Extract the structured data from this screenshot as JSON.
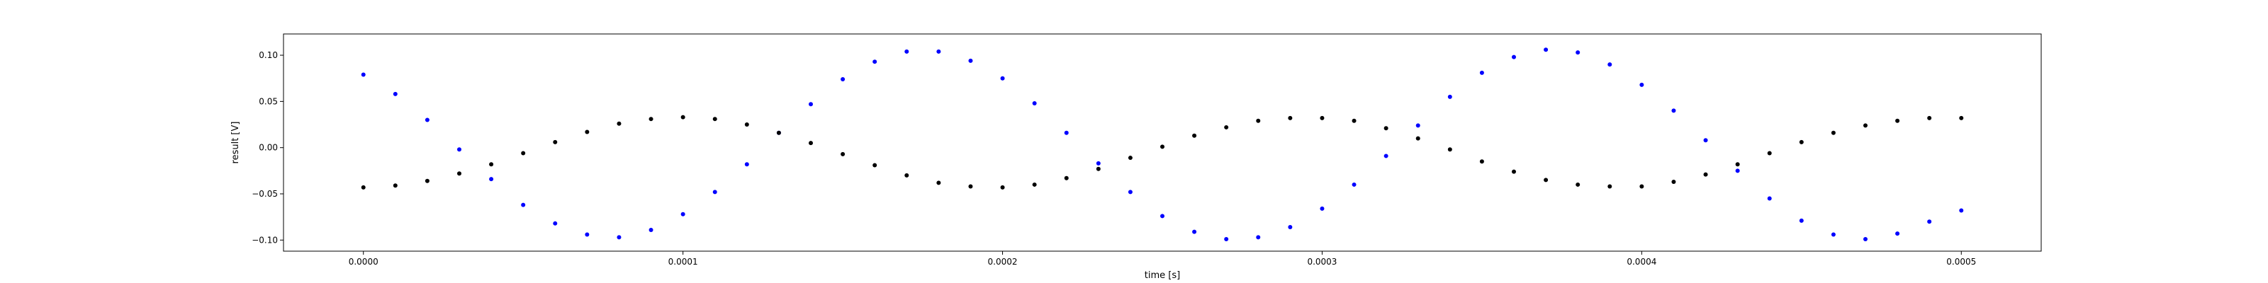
{
  "chart_data": {
    "type": "scatter",
    "title": "",
    "xlabel": "time [s]",
    "ylabel": "result [V]",
    "xlim": [
      -2.5e-05,
      0.000525
    ],
    "ylim": [
      -0.112,
      0.123
    ],
    "x_ticks": [
      0.0,
      0.0001,
      0.0002,
      0.0003,
      0.0004,
      0.0005
    ],
    "x_tick_labels": [
      "0.0000",
      "0.0001",
      "0.0002",
      "0.0003",
      "0.0004",
      "0.0005"
    ],
    "y_ticks": [
      -0.1,
      -0.05,
      0.0,
      0.05,
      0.1
    ],
    "y_tick_labels": [
      "−0.10",
      "−0.05",
      "0.00",
      "0.05",
      "0.10"
    ],
    "grid": false,
    "legend": "none",
    "series": [
      {
        "color": "#0000ff",
        "points": [
          [
            0.0,
            0.079
          ],
          [
            1e-05,
            0.058
          ],
          [
            2e-05,
            0.03
          ],
          [
            3e-05,
            -0.002
          ],
          [
            4e-05,
            -0.034
          ],
          [
            5e-05,
            -0.062
          ],
          [
            6e-05,
            -0.082
          ],
          [
            7e-05,
            -0.094
          ],
          [
            8e-05,
            -0.097
          ],
          [
            9e-05,
            -0.089
          ],
          [
            0.0001,
            -0.072
          ],
          [
            0.00011,
            -0.048
          ],
          [
            0.00012,
            -0.018
          ],
          [
            0.00013,
            0.016
          ],
          [
            0.00014,
            0.047
          ],
          [
            0.00015,
            0.074
          ],
          [
            0.00016,
            0.093
          ],
          [
            0.00017,
            0.104
          ],
          [
            0.00018,
            0.104
          ],
          [
            0.00019,
            0.094
          ],
          [
            0.0002,
            0.075
          ],
          [
            0.00021,
            0.048
          ],
          [
            0.00022,
            0.016
          ],
          [
            0.00023,
            -0.017
          ],
          [
            0.00024,
            -0.048
          ],
          [
            0.00025,
            -0.074
          ],
          [
            0.00026,
            -0.091
          ],
          [
            0.00027,
            -0.099
          ],
          [
            0.00028,
            -0.097
          ],
          [
            0.00029,
            -0.086
          ],
          [
            0.0003,
            -0.066
          ],
          [
            0.00031,
            -0.04
          ],
          [
            0.00032,
            -0.009
          ],
          [
            0.00033,
            0.024
          ],
          [
            0.00034,
            0.055
          ],
          [
            0.00035,
            0.081
          ],
          [
            0.00036,
            0.098
          ],
          [
            0.00037,
            0.106
          ],
          [
            0.00038,
            0.103
          ],
          [
            0.00039,
            0.09
          ],
          [
            0.0004,
            0.068
          ],
          [
            0.00041,
            0.04
          ],
          [
            0.00042,
            0.008
          ],
          [
            0.00043,
            -0.025
          ],
          [
            0.00044,
            -0.055
          ],
          [
            0.00045,
            -0.079
          ],
          [
            0.00046,
            -0.094
          ],
          [
            0.00047,
            -0.099
          ],
          [
            0.00048,
            -0.093
          ],
          [
            0.00049,
            -0.08
          ],
          [
            0.0005,
            -0.068
          ]
        ]
      },
      {
        "color": "#000000",
        "points": [
          [
            0.0,
            -0.043
          ],
          [
            1e-05,
            -0.041
          ],
          [
            2e-05,
            -0.036
          ],
          [
            3e-05,
            -0.028
          ],
          [
            4e-05,
            -0.018
          ],
          [
            5e-05,
            -0.006
          ],
          [
            6e-05,
            0.006
          ],
          [
            7e-05,
            0.017
          ],
          [
            8e-05,
            0.026
          ],
          [
            9e-05,
            0.031
          ],
          [
            0.0001,
            0.033
          ],
          [
            0.00011,
            0.031
          ],
          [
            0.00012,
            0.025
          ],
          [
            0.00013,
            0.016
          ],
          [
            0.00014,
            0.005
          ],
          [
            0.00015,
            -0.007
          ],
          [
            0.00016,
            -0.019
          ],
          [
            0.00017,
            -0.03
          ],
          [
            0.00018,
            -0.038
          ],
          [
            0.00019,
            -0.042
          ],
          [
            0.0002,
            -0.043
          ],
          [
            0.00021,
            -0.04
          ],
          [
            0.00022,
            -0.033
          ],
          [
            0.00023,
            -0.023
          ],
          [
            0.00024,
            -0.011
          ],
          [
            0.00025,
            0.001
          ],
          [
            0.00026,
            0.013
          ],
          [
            0.00027,
            0.022
          ],
          [
            0.00028,
            0.029
          ],
          [
            0.00029,
            0.032
          ],
          [
            0.0003,
            0.032
          ],
          [
            0.00031,
            0.029
          ],
          [
            0.00032,
            0.021
          ],
          [
            0.00033,
            0.01
          ],
          [
            0.00034,
            -0.002
          ],
          [
            0.00035,
            -0.015
          ],
          [
            0.00036,
            -0.026
          ],
          [
            0.00037,
            -0.035
          ],
          [
            0.00038,
            -0.04
          ],
          [
            0.00039,
            -0.042
          ],
          [
            0.0004,
            -0.042
          ],
          [
            0.00041,
            -0.037
          ],
          [
            0.00042,
            -0.029
          ],
          [
            0.00043,
            -0.018
          ],
          [
            0.00044,
            -0.006
          ],
          [
            0.00045,
            0.006
          ],
          [
            0.00046,
            0.016
          ],
          [
            0.00047,
            0.024
          ],
          [
            0.00048,
            0.029
          ],
          [
            0.00049,
            0.032
          ],
          [
            0.0005,
            0.032
          ]
        ]
      }
    ]
  }
}
